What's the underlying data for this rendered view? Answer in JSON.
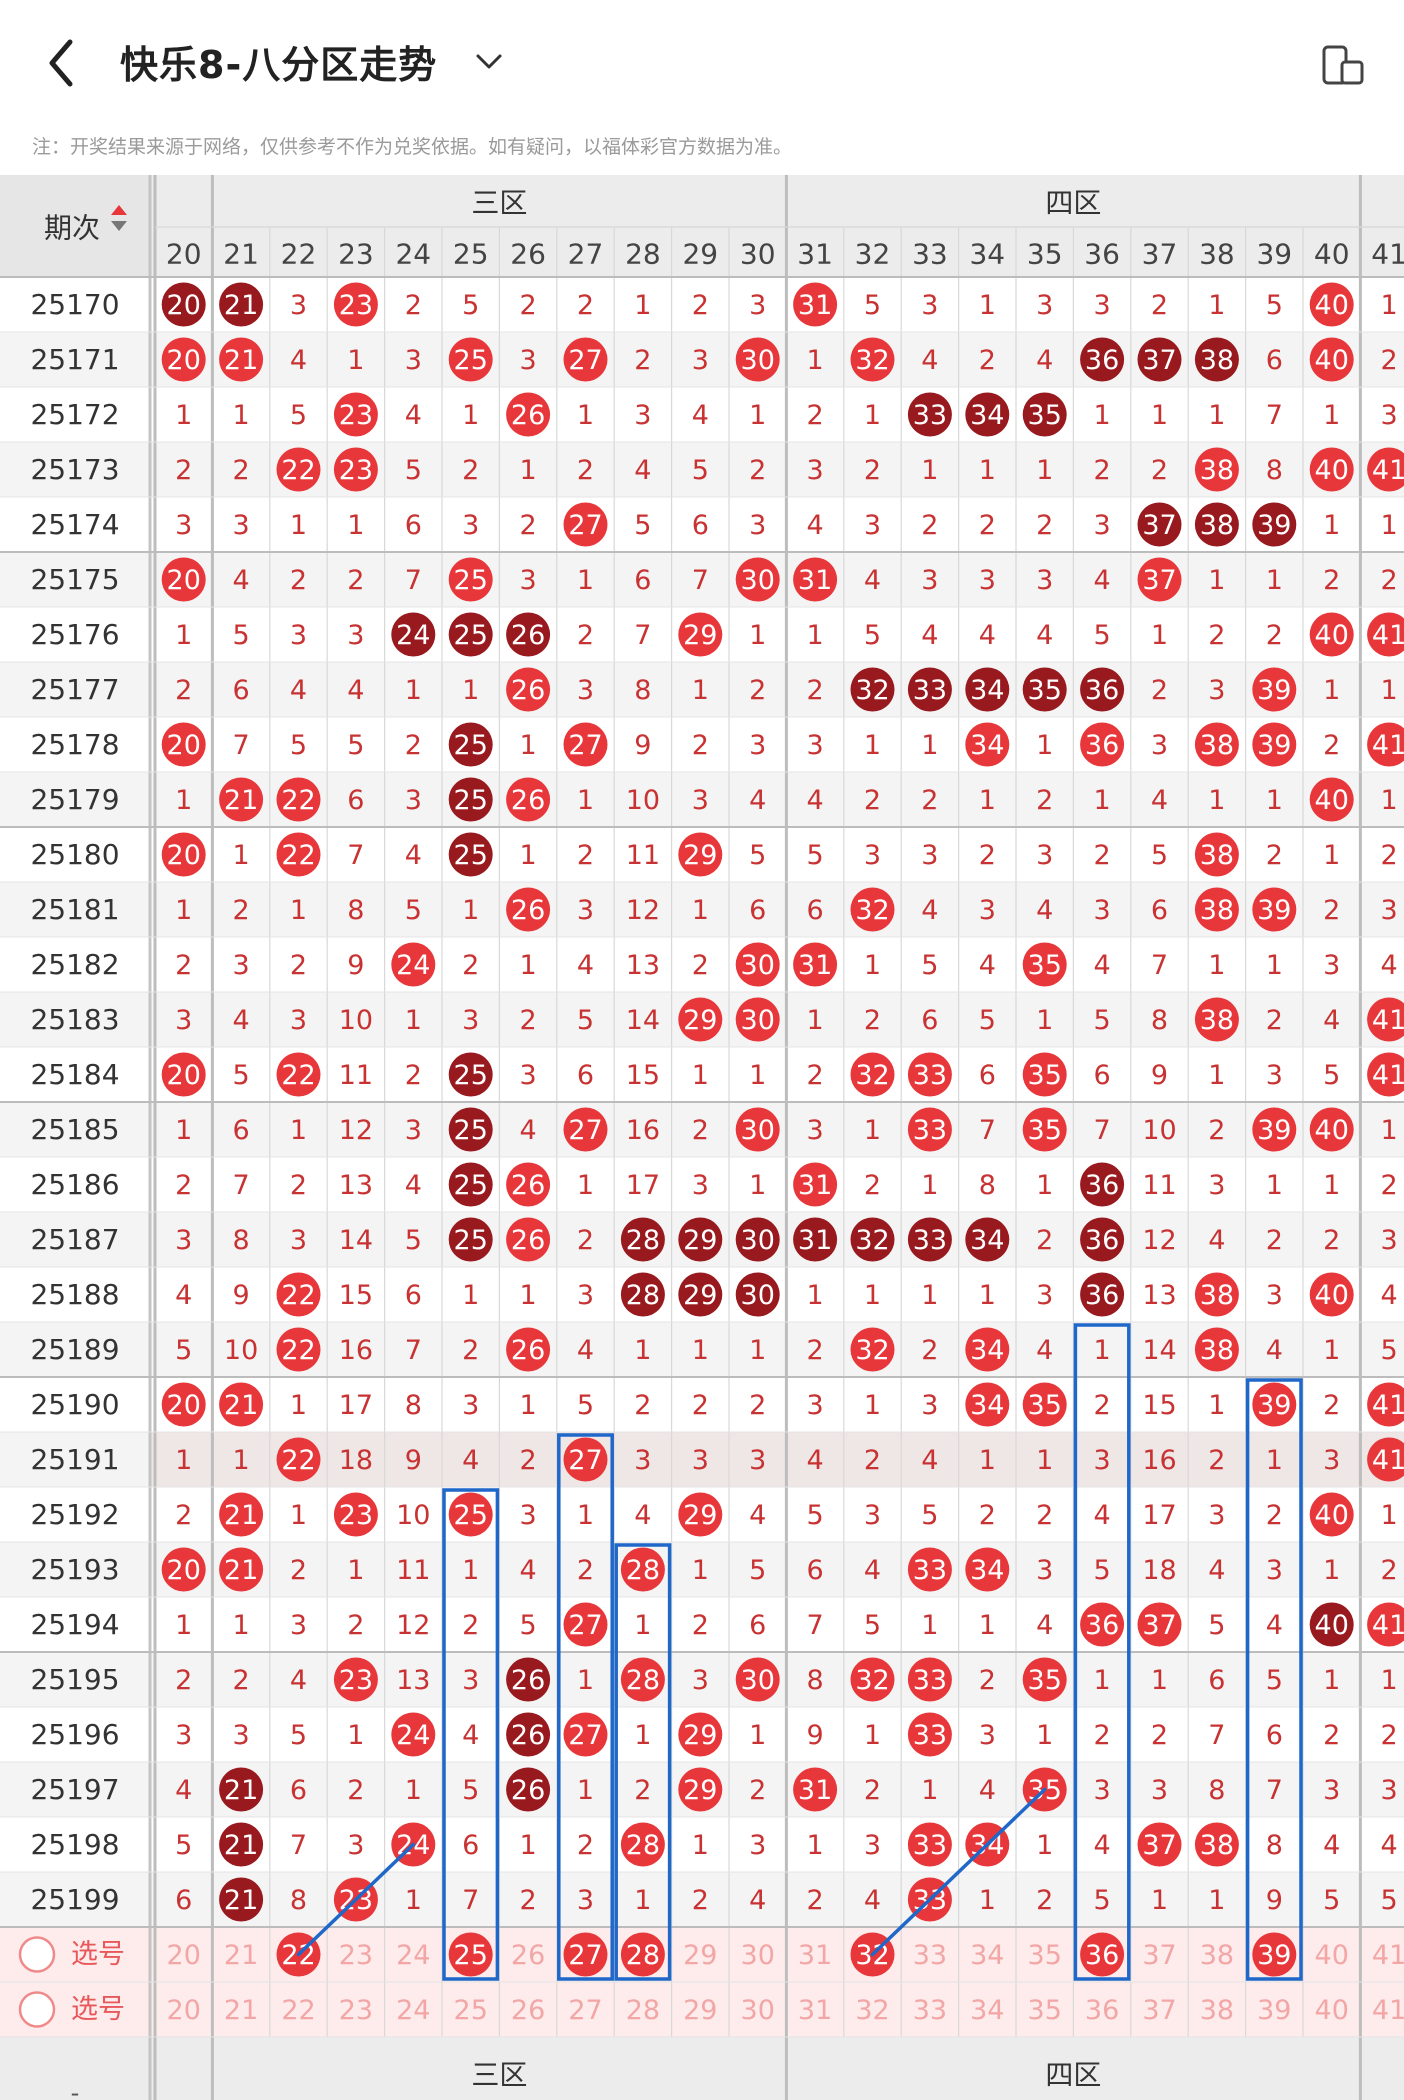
{
  "header": {
    "title": "快乐8-八分区走势",
    "notice": "注：开奖结果来源于网络，仅供参考不作为兑奖依据。如有疑问，以福体彩官方数据为准。"
  },
  "table": {
    "period_header": "期次",
    "zones": [
      {
        "name": "三区",
        "start": 21,
        "end": 30
      },
      {
        "name": "四区",
        "start": 31,
        "end": 40
      }
    ],
    "columns": [
      20,
      21,
      22,
      23,
      24,
      25,
      26,
      27,
      28,
      29,
      30,
      31,
      32,
      33,
      34,
      35,
      36,
      37,
      38,
      39,
      40,
      41
    ],
    "rows": [
      {
        "period": "25170",
        "cells": [
          "20",
          "21",
          "3",
          "23",
          "2",
          "5",
          "2",
          "2",
          "1",
          "2",
          "3",
          "31",
          "5",
          "3",
          "1",
          "3",
          "3",
          "2",
          "1",
          "5",
          "40",
          "1"
        ],
        "hit": [
          20,
          21,
          23,
          31,
          40
        ],
        "dark": [
          20,
          21
        ]
      },
      {
        "period": "25171",
        "cells": [
          "20",
          "21",
          "4",
          "1",
          "3",
          "25",
          "3",
          "27",
          "2",
          "3",
          "30",
          "1",
          "32",
          "4",
          "2",
          "4",
          "36",
          "37",
          "38",
          "6",
          "40",
          "2"
        ],
        "hit": [
          20,
          21,
          25,
          27,
          30,
          32,
          36,
          37,
          38,
          40
        ],
        "dark": [
          36,
          37,
          38
        ]
      },
      {
        "period": "25172",
        "cells": [
          "1",
          "1",
          "5",
          "23",
          "4",
          "1",
          "26",
          "1",
          "3",
          "4",
          "1",
          "2",
          "1",
          "33",
          "34",
          "35",
          "1",
          "1",
          "1",
          "7",
          "1",
          "3"
        ],
        "hit": [
          23,
          26,
          33,
          34,
          35
        ],
        "dark": [
          33,
          34,
          35
        ]
      },
      {
        "period": "25173",
        "cells": [
          "2",
          "2",
          "22",
          "23",
          "5",
          "2",
          "1",
          "2",
          "4",
          "5",
          "2",
          "3",
          "2",
          "1",
          "1",
          "1",
          "2",
          "2",
          "38",
          "8",
          "40",
          "41"
        ],
        "hit": [
          22,
          23,
          38,
          40,
          41
        ],
        "dark": []
      },
      {
        "period": "25174",
        "cells": [
          "3",
          "3",
          "1",
          "1",
          "6",
          "3",
          "2",
          "27",
          "5",
          "6",
          "3",
          "4",
          "3",
          "2",
          "2",
          "2",
          "3",
          "37",
          "38",
          "39",
          "1",
          "1"
        ],
        "hit": [
          27,
          37,
          38,
          39
        ],
        "dark": [
          37,
          38,
          39
        ]
      },
      {
        "period": "25175",
        "cells": [
          "20",
          "4",
          "2",
          "2",
          "7",
          "25",
          "3",
          "1",
          "6",
          "7",
          "30",
          "31",
          "4",
          "3",
          "3",
          "3",
          "4",
          "37",
          "1",
          "1",
          "2",
          "2"
        ],
        "hit": [
          20,
          25,
          30,
          31,
          37
        ],
        "dark": []
      },
      {
        "period": "25176",
        "cells": [
          "1",
          "5",
          "3",
          "3",
          "24",
          "25",
          "26",
          "2",
          "7",
          "29",
          "1",
          "1",
          "5",
          "4",
          "4",
          "4",
          "5",
          "1",
          "2",
          "2",
          "40",
          "41"
        ],
        "hit": [
          24,
          25,
          26,
          29,
          40,
          41
        ],
        "dark": [
          24,
          25,
          26
        ]
      },
      {
        "period": "25177",
        "cells": [
          "2",
          "6",
          "4",
          "4",
          "1",
          "1",
          "26",
          "3",
          "8",
          "1",
          "2",
          "2",
          "32",
          "33",
          "34",
          "35",
          "36",
          "2",
          "3",
          "39",
          "1",
          "1"
        ],
        "hit": [
          26,
          32,
          33,
          34,
          35,
          36,
          39
        ],
        "dark": [
          32,
          33,
          34,
          35,
          36
        ]
      },
      {
        "period": "25178",
        "cells": [
          "20",
          "7",
          "5",
          "5",
          "2",
          "25",
          "1",
          "27",
          "9",
          "2",
          "3",
          "3",
          "1",
          "1",
          "34",
          "1",
          "36",
          "3",
          "38",
          "39",
          "2",
          "41"
        ],
        "hit": [
          20,
          25,
          27,
          34,
          36,
          38,
          39,
          41
        ],
        "dark": [
          25
        ]
      },
      {
        "period": "25179",
        "cells": [
          "1",
          "21",
          "22",
          "6",
          "3",
          "25",
          "26",
          "1",
          "10",
          "3",
          "4",
          "4",
          "2",
          "2",
          "1",
          "2",
          "1",
          "4",
          "1",
          "1",
          "40",
          "1"
        ],
        "hit": [
          21,
          22,
          25,
          26,
          40
        ],
        "dark": [
          25
        ]
      },
      {
        "period": "25180",
        "cells": [
          "20",
          "1",
          "22",
          "7",
          "4",
          "25",
          "1",
          "2",
          "11",
          "29",
          "5",
          "5",
          "3",
          "3",
          "2",
          "3",
          "2",
          "5",
          "38",
          "2",
          "1",
          "2"
        ],
        "hit": [
          20,
          22,
          25,
          29,
          38
        ],
        "dark": [
          25
        ]
      },
      {
        "period": "25181",
        "cells": [
          "1",
          "2",
          "1",
          "8",
          "5",
          "1",
          "26",
          "3",
          "12",
          "1",
          "6",
          "6",
          "32",
          "4",
          "3",
          "4",
          "3",
          "6",
          "38",
          "39",
          "2",
          "3"
        ],
        "hit": [
          26,
          32,
          38,
          39
        ],
        "dark": []
      },
      {
        "period": "25182",
        "cells": [
          "2",
          "3",
          "2",
          "9",
          "24",
          "2",
          "1",
          "4",
          "13",
          "2",
          "30",
          "31",
          "1",
          "5",
          "4",
          "35",
          "4",
          "7",
          "1",
          "1",
          "3",
          "4"
        ],
        "hit": [
          24,
          30,
          31,
          35
        ],
        "dark": []
      },
      {
        "period": "25183",
        "cells": [
          "3",
          "4",
          "3",
          "10",
          "1",
          "3",
          "2",
          "5",
          "14",
          "29",
          "30",
          "1",
          "2",
          "6",
          "5",
          "1",
          "5",
          "8",
          "38",
          "2",
          "4",
          "41"
        ],
        "hit": [
          29,
          30,
          38,
          41
        ],
        "dark": []
      },
      {
        "period": "25184",
        "cells": [
          "20",
          "5",
          "22",
          "11",
          "2",
          "25",
          "3",
          "6",
          "15",
          "1",
          "1",
          "2",
          "32",
          "33",
          "6",
          "35",
          "6",
          "9",
          "1",
          "3",
          "5",
          "41"
        ],
        "hit": [
          20,
          22,
          25,
          32,
          33,
          35,
          41
        ],
        "dark": [
          25
        ]
      },
      {
        "period": "25185",
        "cells": [
          "1",
          "6",
          "1",
          "12",
          "3",
          "25",
          "4",
          "27",
          "16",
          "2",
          "30",
          "3",
          "1",
          "33",
          "7",
          "35",
          "7",
          "10",
          "2",
          "39",
          "40",
          "1"
        ],
        "hit": [
          25,
          27,
          30,
          33,
          35,
          39,
          40
        ],
        "dark": [
          25
        ]
      },
      {
        "period": "25186",
        "cells": [
          "2",
          "7",
          "2",
          "13",
          "4",
          "25",
          "26",
          "1",
          "17",
          "3",
          "1",
          "31",
          "2",
          "1",
          "8",
          "1",
          "36",
          "11",
          "3",
          "1",
          "1",
          "2"
        ],
        "hit": [
          25,
          26,
          31,
          36
        ],
        "dark": [
          25,
          36
        ]
      },
      {
        "period": "25187",
        "cells": [
          "3",
          "8",
          "3",
          "14",
          "5",
          "25",
          "26",
          "2",
          "28",
          "29",
          "30",
          "31",
          "32",
          "33",
          "34",
          "2",
          "36",
          "12",
          "4",
          "2",
          "2",
          "3"
        ],
        "hit": [
          25,
          26,
          28,
          29,
          30,
          31,
          32,
          33,
          34,
          36
        ],
        "dark": [
          25,
          28,
          29,
          30,
          31,
          32,
          33,
          34,
          36
        ]
      },
      {
        "period": "25188",
        "cells": [
          "4",
          "9",
          "22",
          "15",
          "6",
          "1",
          "1",
          "3",
          "28",
          "29",
          "30",
          "1",
          "1",
          "1",
          "1",
          "3",
          "36",
          "13",
          "38",
          "3",
          "40",
          "4"
        ],
        "hit": [
          22,
          28,
          29,
          30,
          36,
          38,
          40
        ],
        "dark": [
          28,
          29,
          30,
          36
        ]
      },
      {
        "period": "25189",
        "cells": [
          "5",
          "10",
          "22",
          "16",
          "7",
          "2",
          "26",
          "4",
          "1",
          "1",
          "1",
          "2",
          "32",
          "2",
          "34",
          "4",
          "1",
          "14",
          "38",
          "4",
          "1",
          "5"
        ],
        "hit": [
          22,
          26,
          32,
          34,
          38
        ],
        "dark": []
      },
      {
        "period": "25190",
        "cells": [
          "20",
          "21",
          "1",
          "17",
          "8",
          "3",
          "1",
          "5",
          "2",
          "2",
          "2",
          "3",
          "1",
          "3",
          "34",
          "35",
          "2",
          "15",
          "1",
          "39",
          "2",
          "41"
        ],
        "hit": [
          20,
          21,
          34,
          35,
          39,
          41
        ],
        "dark": []
      },
      {
        "period": "25191",
        "cells": [
          "1",
          "1",
          "22",
          "18",
          "9",
          "4",
          "2",
          "27",
          "3",
          "3",
          "3",
          "4",
          "2",
          "4",
          "1",
          "1",
          "3",
          "16",
          "2",
          "1",
          "3",
          "41"
        ],
        "hit": [
          22,
          27,
          41
        ],
        "dark": []
      },
      {
        "period": "25192",
        "cells": [
          "2",
          "21",
          "1",
          "23",
          "10",
          "25",
          "3",
          "1",
          "4",
          "29",
          "4",
          "5",
          "3",
          "5",
          "2",
          "2",
          "4",
          "17",
          "3",
          "2",
          "40",
          "1"
        ],
        "hit": [
          21,
          23,
          25,
          29,
          40
        ],
        "dark": []
      },
      {
        "period": "25193",
        "cells": [
          "20",
          "21",
          "2",
          "1",
          "11",
          "1",
          "4",
          "2",
          "28",
          "1",
          "5",
          "6",
          "4",
          "33",
          "34",
          "3",
          "5",
          "18",
          "4",
          "3",
          "1",
          "2"
        ],
        "hit": [
          20,
          21,
          28,
          33,
          34
        ],
        "dark": []
      },
      {
        "period": "25194",
        "cells": [
          "1",
          "1",
          "3",
          "2",
          "12",
          "2",
          "5",
          "27",
          "1",
          "2",
          "6",
          "7",
          "5",
          "1",
          "1",
          "4",
          "36",
          "37",
          "5",
          "4",
          "40",
          "41"
        ],
        "hit": [
          27,
          36,
          37,
          40,
          41
        ],
        "dark": [
          40
        ]
      },
      {
        "period": "25195",
        "cells": [
          "2",
          "2",
          "4",
          "23",
          "13",
          "3",
          "26",
          "1",
          "28",
          "3",
          "30",
          "8",
          "32",
          "33",
          "2",
          "35",
          "1",
          "1",
          "6",
          "5",
          "1",
          "1"
        ],
        "hit": [
          23,
          26,
          28,
          30,
          32,
          33,
          35
        ],
        "dark": [
          26
        ]
      },
      {
        "period": "25196",
        "cells": [
          "3",
          "3",
          "5",
          "1",
          "24",
          "4",
          "26",
          "27",
          "1",
          "29",
          "1",
          "9",
          "1",
          "33",
          "3",
          "1",
          "2",
          "2",
          "7",
          "6",
          "2",
          "2"
        ],
        "hit": [
          24,
          26,
          27,
          29,
          33
        ],
        "dark": [
          26
        ]
      },
      {
        "period": "25197",
        "cells": [
          "4",
          "21",
          "6",
          "2",
          "1",
          "5",
          "26",
          "1",
          "2",
          "29",
          "2",
          "31",
          "2",
          "1",
          "4",
          "35",
          "3",
          "3",
          "8",
          "7",
          "3",
          "3"
        ],
        "hit": [
          21,
          26,
          29,
          31,
          35
        ],
        "dark": [
          21,
          26
        ]
      },
      {
        "period": "25198",
        "cells": [
          "5",
          "21",
          "7",
          "3",
          "24",
          "6",
          "1",
          "2",
          "28",
          "1",
          "3",
          "1",
          "3",
          "33",
          "34",
          "1",
          "4",
          "37",
          "38",
          "8",
          "4",
          "4"
        ],
        "hit": [
          21,
          24,
          28,
          33,
          34,
          37,
          38
        ],
        "dark": [
          21
        ]
      },
      {
        "period": "25199",
        "cells": [
          "6",
          "21",
          "8",
          "23",
          "1",
          "7",
          "2",
          "3",
          "1",
          "2",
          "4",
          "2",
          "4",
          "33",
          "1",
          "2",
          "5",
          "1",
          "1",
          "9",
          "5",
          "5"
        ],
        "hit": [
          21,
          23,
          33
        ],
        "dark": [
          21
        ]
      }
    ],
    "select_rows": [
      {
        "label": "选号",
        "picked": [
          22,
          25,
          27,
          28,
          32,
          36,
          39
        ]
      },
      {
        "label": "选号",
        "picked": []
      }
    ]
  },
  "colors": {
    "red": "#e8373a",
    "dark_red": "#98191e",
    "grid": "#d8d8d8",
    "number_red": "#c83232",
    "blue": "#1f67c8",
    "header_bg": "#ececec",
    "select_bg": "#fdeceb"
  },
  "icons": [
    "back-arrow-icon",
    "chevron-down-icon",
    "device-icon",
    "sort-arrow-icon"
  ]
}
